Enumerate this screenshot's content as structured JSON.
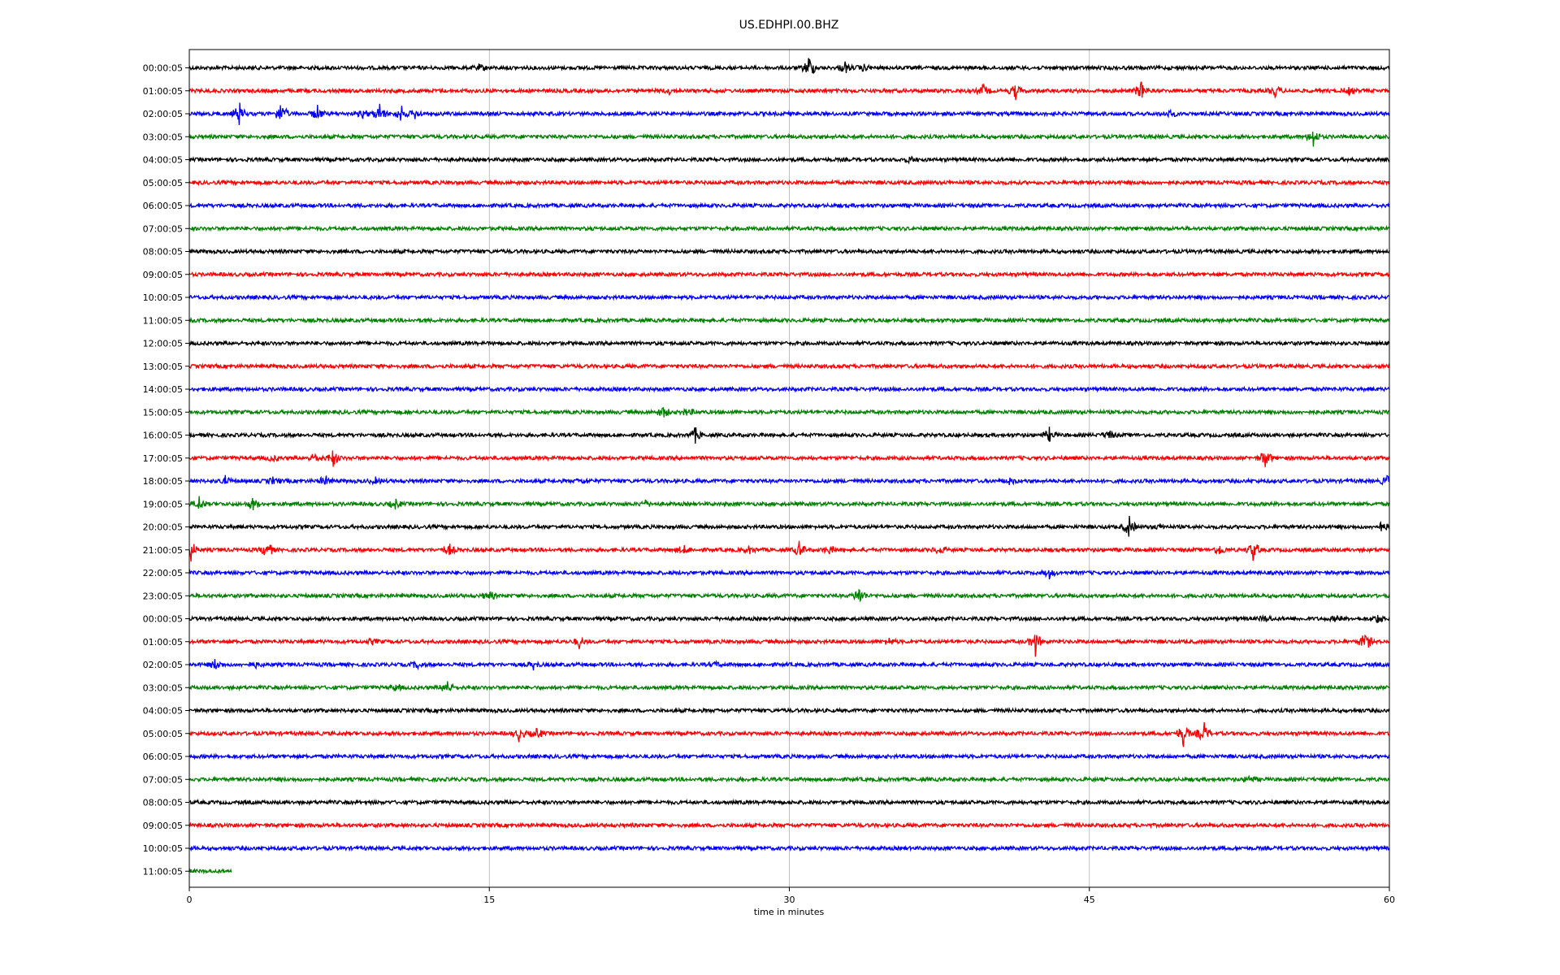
{
  "chart_data": {
    "type": "line",
    "title": "US.EDHPI.00.BHZ",
    "xlabel": "time in minutes",
    "ylabel": "",
    "xlim": [
      0,
      60
    ],
    "x_ticks": [
      "0",
      "15",
      "30",
      "45",
      "60"
    ],
    "grid": "vertical",
    "row_labels": [
      "00:00:05",
      "01:00:05",
      "02:00:05",
      "03:00:05",
      "04:00:05",
      "05:00:05",
      "06:00:05",
      "07:00:05",
      "08:00:05",
      "09:00:05",
      "10:00:05",
      "11:00:05",
      "12:00:05",
      "13:00:05",
      "14:00:05",
      "15:00:05",
      "16:00:05",
      "17:00:05",
      "18:00:05",
      "19:00:05",
      "20:00:05",
      "21:00:05",
      "22:00:05",
      "23:00:05",
      "00:00:05",
      "01:00:05",
      "02:00:05",
      "03:00:05",
      "04:00:05",
      "05:00:05",
      "06:00:05",
      "07:00:05",
      "08:00:05",
      "09:00:05",
      "10:00:05",
      "11:00:05"
    ],
    "row_colors": [
      "#000000",
      "#ff0000",
      "#0000ff",
      "#008000"
    ],
    "last_row_end_minute": 2.1,
    "events": [
      {
        "row": 0,
        "minute": 14.5,
        "amp": 0.3
      },
      {
        "row": 0,
        "minute": 31.0,
        "amp": 1.0
      },
      {
        "row": 0,
        "minute": 32.8,
        "amp": 0.5
      },
      {
        "row": 0,
        "minute": 33.7,
        "amp": 0.35
      },
      {
        "row": 1,
        "minute": 24.0,
        "amp": 0.3
      },
      {
        "row": 1,
        "minute": 39.7,
        "amp": 0.55
      },
      {
        "row": 1,
        "minute": 41.3,
        "amp": 0.6
      },
      {
        "row": 1,
        "minute": 47.6,
        "amp": 0.9
      },
      {
        "row": 1,
        "minute": 54.3,
        "amp": 0.5
      },
      {
        "row": 1,
        "minute": 58.0,
        "amp": 0.35
      },
      {
        "row": 2,
        "minute": 2.5,
        "amp": 0.9
      },
      {
        "row": 2,
        "minute": 4.6,
        "amp": 1.0
      },
      {
        "row": 2,
        "minute": 6.4,
        "amp": 0.6
      },
      {
        "row": 2,
        "minute": 8.7,
        "amp": 0.4
      },
      {
        "row": 2,
        "minute": 9.5,
        "amp": 0.8
      },
      {
        "row": 2,
        "minute": 10.6,
        "amp": 0.6
      },
      {
        "row": 2,
        "minute": 11.3,
        "amp": 0.4
      },
      {
        "row": 2,
        "minute": 49.0,
        "amp": 0.4
      },
      {
        "row": 3,
        "minute": 56.2,
        "amp": 0.7
      },
      {
        "row": 4,
        "minute": 36.0,
        "amp": 0.3
      },
      {
        "row": 15,
        "minute": 23.7,
        "amp": 0.5
      },
      {
        "row": 15,
        "minute": 24.9,
        "amp": 0.4
      },
      {
        "row": 16,
        "minute": 25.3,
        "amp": 0.6
      },
      {
        "row": 16,
        "minute": 43.0,
        "amp": 0.5
      },
      {
        "row": 16,
        "minute": 46.0,
        "amp": 0.45
      },
      {
        "row": 17,
        "minute": 4.2,
        "amp": 0.35
      },
      {
        "row": 17,
        "minute": 6.3,
        "amp": 0.5
      },
      {
        "row": 17,
        "minute": 7.2,
        "amp": 0.7
      },
      {
        "row": 17,
        "minute": 53.8,
        "amp": 0.9
      },
      {
        "row": 18,
        "minute": 1.8,
        "amp": 0.4
      },
      {
        "row": 18,
        "minute": 4.2,
        "amp": 0.35
      },
      {
        "row": 18,
        "minute": 6.8,
        "amp": 0.5
      },
      {
        "row": 18,
        "minute": 9.3,
        "amp": 0.3
      },
      {
        "row": 18,
        "minute": 19.7,
        "amp": 0.3
      },
      {
        "row": 18,
        "minute": 41.0,
        "amp": 0.4
      },
      {
        "row": 18,
        "minute": 59.9,
        "amp": 0.5
      },
      {
        "row": 19,
        "minute": 0.5,
        "amp": 0.6
      },
      {
        "row": 19,
        "minute": 3.2,
        "amp": 0.55
      },
      {
        "row": 19,
        "minute": 10.3,
        "amp": 0.4
      },
      {
        "row": 19,
        "minute": 22.8,
        "amp": 0.3
      },
      {
        "row": 20,
        "minute": 47.0,
        "amp": 0.9
      },
      {
        "row": 20,
        "minute": 48.5,
        "amp": 0.3
      },
      {
        "row": 20,
        "minute": 59.6,
        "amp": 0.5
      },
      {
        "row": 21,
        "minute": 0.1,
        "amp": 0.9
      },
      {
        "row": 21,
        "minute": 3.9,
        "amp": 0.8
      },
      {
        "row": 21,
        "minute": 13.0,
        "amp": 0.5
      },
      {
        "row": 21,
        "minute": 24.7,
        "amp": 0.45
      },
      {
        "row": 21,
        "minute": 28.0,
        "amp": 0.35
      },
      {
        "row": 21,
        "minute": 30.5,
        "amp": 0.65
      },
      {
        "row": 21,
        "minute": 32.0,
        "amp": 0.35
      },
      {
        "row": 21,
        "minute": 37.5,
        "amp": 0.45
      },
      {
        "row": 21,
        "minute": 51.5,
        "amp": 0.5
      },
      {
        "row": 21,
        "minute": 53.2,
        "amp": 0.9
      },
      {
        "row": 22,
        "minute": 43.0,
        "amp": 0.4
      },
      {
        "row": 23,
        "minute": 15.0,
        "amp": 0.45
      },
      {
        "row": 23,
        "minute": 33.5,
        "amp": 0.8
      },
      {
        "row": 24,
        "minute": 53.8,
        "amp": 0.35
      },
      {
        "row": 24,
        "minute": 57.4,
        "amp": 0.3
      },
      {
        "row": 24,
        "minute": 59.4,
        "amp": 0.4
      },
      {
        "row": 25,
        "minute": 9.2,
        "amp": 0.3
      },
      {
        "row": 25,
        "minute": 19.5,
        "amp": 0.45
      },
      {
        "row": 25,
        "minute": 35.0,
        "amp": 0.3
      },
      {
        "row": 25,
        "minute": 42.3,
        "amp": 0.9
      },
      {
        "row": 25,
        "minute": 58.8,
        "amp": 0.9
      },
      {
        "row": 26,
        "minute": 1.3,
        "amp": 0.45
      },
      {
        "row": 26,
        "minute": 3.3,
        "amp": 0.3
      },
      {
        "row": 26,
        "minute": 11.4,
        "amp": 0.35
      },
      {
        "row": 26,
        "minute": 17.2,
        "amp": 0.35
      },
      {
        "row": 26,
        "minute": 26.3,
        "amp": 0.3
      },
      {
        "row": 27,
        "minute": 10.3,
        "amp": 0.3
      },
      {
        "row": 27,
        "minute": 12.9,
        "amp": 0.8
      },
      {
        "row": 29,
        "minute": 16.5,
        "amp": 0.6
      },
      {
        "row": 29,
        "minute": 17.4,
        "amp": 0.5
      },
      {
        "row": 29,
        "minute": 49.7,
        "amp": 1.0
      },
      {
        "row": 29,
        "minute": 50.7,
        "amp": 1.0
      },
      {
        "row": 31,
        "minute": 53.0,
        "amp": 0.3
      }
    ]
  }
}
